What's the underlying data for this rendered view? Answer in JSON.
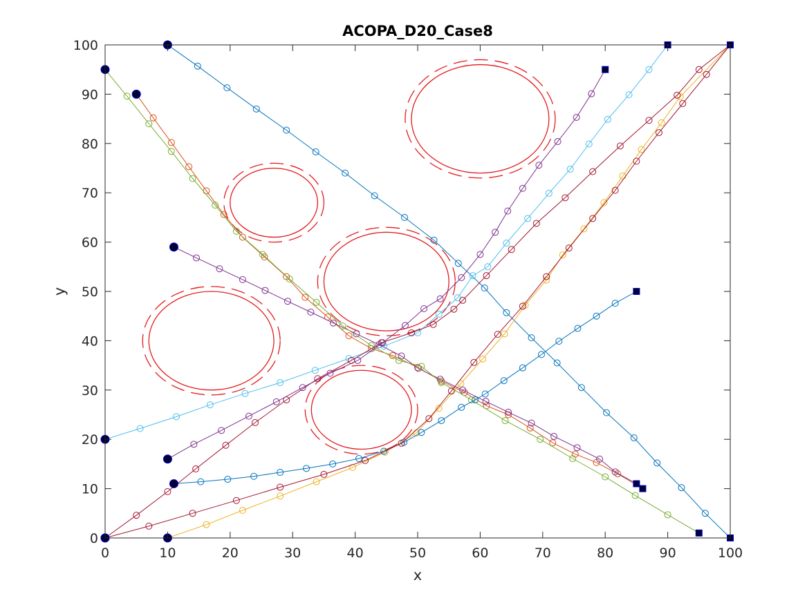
{
  "chart_data": {
    "type": "line",
    "title": "ACOPA_D20_Case8",
    "xlabel": "x",
    "ylabel": "y",
    "xlim": [
      0,
      100
    ],
    "ylim": [
      0,
      100
    ],
    "xticks": [
      "0",
      "10",
      "20",
      "30",
      "40",
      "50",
      "60",
      "70",
      "80",
      "90",
      "100"
    ],
    "yticks": [
      "0",
      "10",
      "20",
      "30",
      "40",
      "50",
      "60",
      "70",
      "80",
      "90",
      "100"
    ],
    "grid": false,
    "legend": "none",
    "obstacles": [
      {
        "name": "obstacle-1",
        "cx": 60,
        "cy": 85,
        "rx": 11,
        "ry": 11,
        "color": "#e31a1c"
      },
      {
        "name": "obstacle-2",
        "cx": 27,
        "cy": 68,
        "rx": 7,
        "ry": 7,
        "color": "#e31a1c"
      },
      {
        "name": "obstacle-3",
        "cx": 45,
        "cy": 52,
        "rx": 10,
        "ry": 10,
        "color": "#e31a1c"
      },
      {
        "name": "obstacle-4",
        "cx": 17,
        "cy": 40,
        "rx": 10,
        "ry": 10,
        "color": "#e31a1c"
      },
      {
        "name": "obstacle-5",
        "cx": 41,
        "cy": 26,
        "rx": 8,
        "ry": 8,
        "color": "#e31a1c"
      }
    ],
    "series": [
      {
        "color": "#0072bd",
        "start": [
          10,
          100
        ],
        "end": [
          100,
          0
        ],
        "points": [
          [
            10,
            100
          ],
          [
            14.8,
            95.7
          ],
          [
            19.5,
            91.3
          ],
          [
            24.2,
            87
          ],
          [
            29,
            82.7
          ],
          [
            33.7,
            78.3
          ],
          [
            38.4,
            74
          ],
          [
            43.1,
            69.4
          ],
          [
            47.9,
            65
          ],
          [
            52.6,
            60.4
          ],
          [
            56.5,
            55.7
          ],
          [
            60.7,
            50.7
          ],
          [
            64.2,
            45.7
          ],
          [
            68.2,
            40.6
          ],
          [
            72.3,
            35.5
          ],
          [
            76.2,
            30.5
          ],
          [
            80.2,
            25.4
          ],
          [
            84.6,
            20.3
          ],
          [
            88.3,
            15.2
          ],
          [
            92.2,
            10.2
          ],
          [
            96,
            5
          ],
          [
            100,
            0
          ]
        ]
      },
      {
        "color": "#d95319",
        "start": [
          5,
          90
        ],
        "end": [
          86,
          10
        ],
        "points": [
          [
            5,
            90
          ],
          [
            7.7,
            85.2
          ],
          [
            10.6,
            80.2
          ],
          [
            13.4,
            75.3
          ],
          [
            16.2,
            70.4
          ],
          [
            19,
            65.6
          ],
          [
            22,
            61
          ],
          [
            25.5,
            57
          ],
          [
            29,
            53
          ],
          [
            32,
            48.8
          ],
          [
            35.6,
            44.8
          ],
          [
            39,
            41
          ],
          [
            42.6,
            38.4
          ],
          [
            46,
            37
          ],
          [
            50,
            34.6
          ],
          [
            53.8,
            31.8
          ],
          [
            57.5,
            29.5
          ],
          [
            61,
            26.8
          ],
          [
            64.5,
            25
          ],
          [
            68,
            22.3
          ],
          [
            71.6,
            19.3
          ],
          [
            75.2,
            17
          ],
          [
            78.6,
            15.3
          ],
          [
            82,
            13
          ],
          [
            86,
            10
          ]
        ]
      },
      {
        "color": "#edb120",
        "start": [
          10,
          0
        ],
        "end": [
          100,
          100
        ],
        "points": [
          [
            10,
            0
          ],
          [
            16.2,
            2.7
          ],
          [
            22,
            5.6
          ],
          [
            28,
            8.5
          ],
          [
            33.8,
            11.4
          ],
          [
            39.6,
            14.3
          ],
          [
            44.8,
            17.4
          ],
          [
            49.8,
            21.3
          ],
          [
            53.4,
            26.3
          ],
          [
            56.9,
            31.3
          ],
          [
            60.4,
            36.3
          ],
          [
            63.9,
            41.4
          ],
          [
            67.2,
            47.2
          ],
          [
            70.6,
            52.3
          ],
          [
            73.2,
            57.4
          ],
          [
            76.6,
            62.7
          ],
          [
            79.8,
            68
          ],
          [
            82.8,
            73.4
          ],
          [
            85.8,
            78.8
          ],
          [
            89,
            84.2
          ],
          [
            92,
            89.5
          ],
          [
            100,
            100
          ]
        ]
      },
      {
        "color": "#7e2f8e",
        "start": [
          11,
          59
        ],
        "end": [
          85,
          11
        ],
        "points": [
          [
            11,
            59
          ],
          [
            14.6,
            56.8
          ],
          [
            18.3,
            54.6
          ],
          [
            22,
            52.4
          ],
          [
            25.6,
            50.2
          ],
          [
            29.2,
            48
          ],
          [
            32.9,
            45.8
          ],
          [
            36.5,
            43.6
          ],
          [
            40.2,
            41.4
          ],
          [
            43.8,
            39.2
          ],
          [
            47.4,
            36.9
          ],
          [
            50.1,
            34.4
          ],
          [
            53.6,
            32.2
          ],
          [
            57.2,
            30
          ],
          [
            60.9,
            27.7
          ],
          [
            64.5,
            25.5
          ],
          [
            68.2,
            23.3
          ],
          [
            71.8,
            20.6
          ],
          [
            75.5,
            18.3
          ],
          [
            79.1,
            16
          ],
          [
            81.6,
            13.4
          ],
          [
            85,
            11
          ]
        ]
      },
      {
        "color": "#77ac30",
        "start": [
          0,
          95
        ],
        "end": [
          95,
          1
        ],
        "points": [
          [
            0,
            95
          ],
          [
            3.5,
            89.6
          ],
          [
            7,
            84
          ],
          [
            10.6,
            78.4
          ],
          [
            14,
            72.9
          ],
          [
            17.6,
            67.5
          ],
          [
            21,
            62.2
          ],
          [
            25.2,
            57.5
          ],
          [
            29.5,
            52.5
          ],
          [
            33.8,
            47.8
          ],
          [
            38,
            43
          ],
          [
            42.6,
            39
          ],
          [
            47,
            36
          ],
          [
            50.6,
            34.8
          ],
          [
            53.8,
            31.5
          ],
          [
            58.6,
            28
          ],
          [
            64,
            23.8
          ],
          [
            69.6,
            20
          ],
          [
            74.8,
            16.1
          ],
          [
            80,
            12.4
          ],
          [
            84.8,
            8.6
          ],
          [
            90,
            4.7
          ],
          [
            95,
            1
          ]
        ]
      },
      {
        "color": "#4dbeee",
        "start": [
          0,
          20
        ],
        "end": [
          90,
          100
        ],
        "points": [
          [
            0,
            20
          ],
          [
            5.6,
            22.2
          ],
          [
            11.4,
            24.6
          ],
          [
            16.8,
            27
          ],
          [
            22.4,
            29.3
          ],
          [
            28,
            31.5
          ],
          [
            33.6,
            34
          ],
          [
            39,
            36.4
          ],
          [
            44.6,
            38.9
          ],
          [
            50,
            41.6
          ],
          [
            53.4,
            45.4
          ],
          [
            56.4,
            48.7
          ],
          [
            58.8,
            53.2
          ],
          [
            61.2,
            55
          ],
          [
            64.2,
            59.8
          ],
          [
            67.6,
            64.8
          ],
          [
            71,
            69.9
          ],
          [
            74.4,
            74.8
          ],
          [
            77.4,
            79.9
          ],
          [
            80.4,
            84.9
          ],
          [
            83.8,
            89.9
          ],
          [
            87,
            95
          ],
          [
            90,
            100
          ]
        ]
      },
      {
        "color": "#a2142f",
        "start": [
          0,
          0
        ],
        "end": [
          100,
          100
        ],
        "points": [
          [
            0,
            0
          ],
          [
            5,
            4.6
          ],
          [
            10,
            9.4
          ],
          [
            14.5,
            14
          ],
          [
            19.3,
            18.8
          ],
          [
            24,
            23.4
          ],
          [
            29,
            28
          ],
          [
            34,
            32.3
          ],
          [
            39.4,
            36
          ],
          [
            44.2,
            39.6
          ],
          [
            49,
            41.6
          ],
          [
            52.5,
            43.3
          ],
          [
            55.8,
            46.4
          ],
          [
            57.2,
            48.2
          ],
          [
            61,
            53.2
          ],
          [
            65,
            58.5
          ],
          [
            69,
            63.8
          ],
          [
            73.6,
            69
          ],
          [
            78,
            74.3
          ],
          [
            82.4,
            79.5
          ],
          [
            87,
            84.7
          ],
          [
            91.5,
            89.8
          ],
          [
            95,
            95
          ],
          [
            100,
            100
          ]
        ]
      },
      {
        "color": "#0072bd",
        "start": [
          11,
          11
        ],
        "end": [
          85,
          50
        ],
        "points": [
          [
            11,
            11
          ],
          [
            15.3,
            11.4
          ],
          [
            19.6,
            11.9
          ],
          [
            23.8,
            12.5
          ],
          [
            28,
            13.3
          ],
          [
            32.2,
            14.1
          ],
          [
            36.4,
            15
          ],
          [
            40.6,
            16.1
          ],
          [
            44.6,
            17.6
          ],
          [
            47.8,
            19.4
          ],
          [
            50.6,
            21.4
          ],
          [
            53.8,
            23.8
          ],
          [
            57,
            26.5
          ],
          [
            59.2,
            28
          ],
          [
            60.8,
            29.2
          ],
          [
            63.8,
            31.9
          ],
          [
            66.8,
            34.5
          ],
          [
            69.8,
            37.2
          ],
          [
            72.6,
            39.9
          ],
          [
            75.6,
            42.5
          ],
          [
            78.6,
            45
          ],
          [
            81.6,
            47.6
          ],
          [
            85,
            50
          ]
        ]
      },
      {
        "color": "#a2142f",
        "start": [
          0,
          0
        ],
        "end": [
          100,
          100
        ],
        "points": [
          [
            0,
            0
          ],
          [
            7,
            2.4
          ],
          [
            14,
            5
          ],
          [
            21,
            7.6
          ],
          [
            28,
            10.3
          ],
          [
            35,
            12.9
          ],
          [
            41.6,
            15.7
          ],
          [
            47.4,
            19.2
          ],
          [
            51.8,
            24.2
          ],
          [
            55.4,
            29.8
          ],
          [
            59,
            35.6
          ],
          [
            62.8,
            41.3
          ],
          [
            66.8,
            47
          ],
          [
            70.6,
            53
          ],
          [
            74.2,
            58.8
          ],
          [
            78,
            64.8
          ],
          [
            81.6,
            70.5
          ],
          [
            85,
            76.4
          ],
          [
            88.6,
            82.2
          ],
          [
            92.4,
            88.1
          ],
          [
            96.2,
            94
          ],
          [
            100,
            100
          ]
        ]
      },
      {
        "color": "#7e2f8e",
        "start": [
          10,
          16
        ],
        "end": [
          80,
          95
        ],
        "points": [
          [
            10,
            16
          ],
          [
            14.2,
            19
          ],
          [
            18.6,
            21.8
          ],
          [
            23,
            24.7
          ],
          [
            27.4,
            27.6
          ],
          [
            31.6,
            30.5
          ],
          [
            36,
            33.4
          ],
          [
            40.4,
            36
          ],
          [
            44.4,
            39.6
          ],
          [
            48,
            43.1
          ],
          [
            51,
            46.5
          ],
          [
            53.6,
            48.5
          ],
          [
            57,
            52.8
          ],
          [
            60,
            57.5
          ],
          [
            62.4,
            62
          ],
          [
            64.4,
            66.3
          ],
          [
            66.8,
            70.9
          ],
          [
            69.4,
            75.6
          ],
          [
            72.4,
            80.4
          ],
          [
            75.4,
            85.3
          ],
          [
            77.8,
            90.1
          ],
          [
            80,
            95
          ]
        ]
      }
    ]
  }
}
